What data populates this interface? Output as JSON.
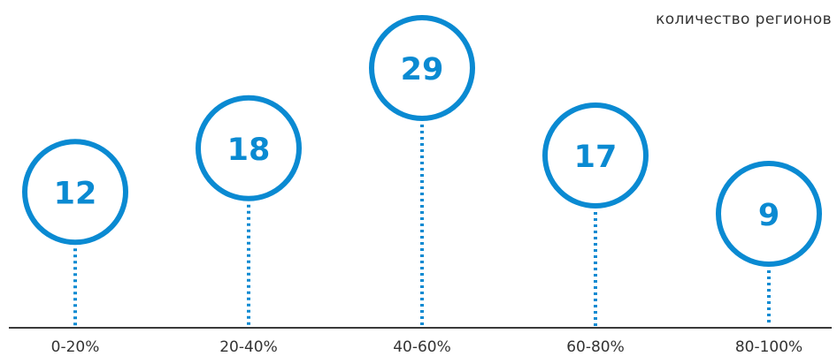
{
  "chart_data": {
    "type": "lollipop",
    "unit_label": "количество регионов",
    "categories": [
      "0-20%",
      "20-40%",
      "40-60%",
      "60-80%",
      "80-100%"
    ],
    "values": [
      12,
      18,
      29,
      17,
      9
    ],
    "value_labels": [
      "12",
      "18",
      "29",
      "17",
      "9"
    ],
    "ylim": [
      0,
      29
    ],
    "grid": false,
    "colors": {
      "accent": "#0A8AD2",
      "axis": "#3A3A3A",
      "tick_text": "#333333",
      "value_text": "#0A8AD2"
    }
  }
}
